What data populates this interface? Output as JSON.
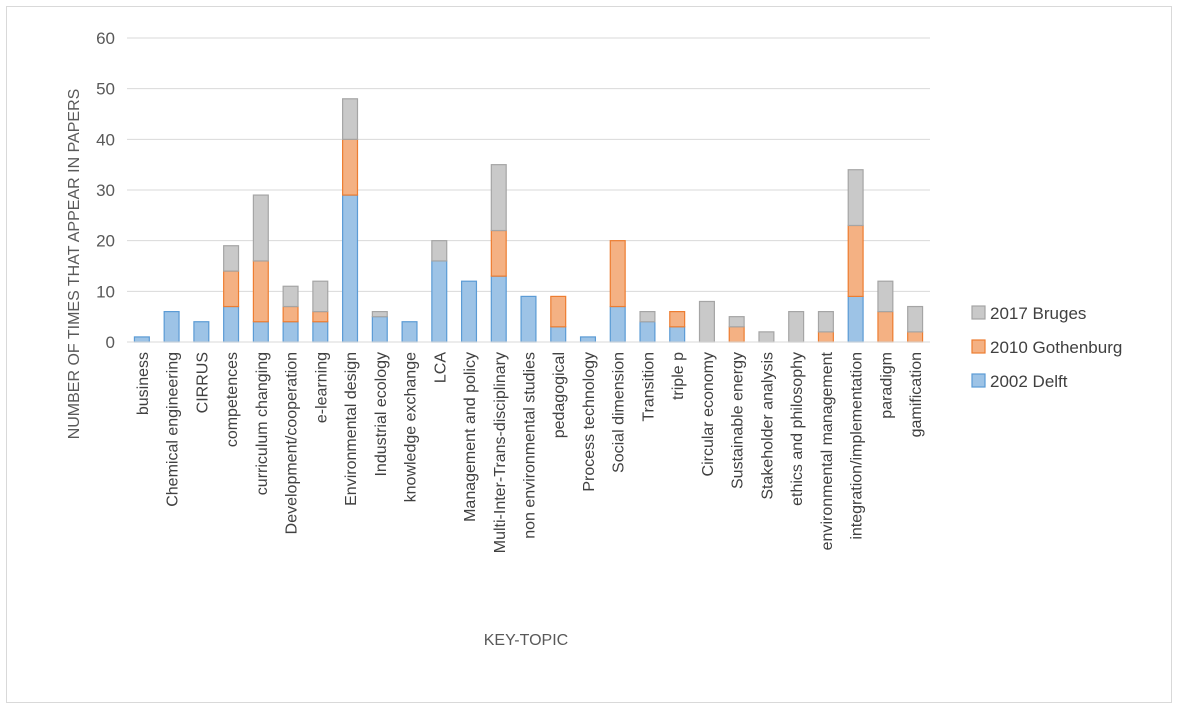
{
  "chart_data": {
    "type": "bar",
    "stacked": true,
    "title": "",
    "xlabel": "KEY-TOPIC",
    "ylabel": "NUMBER OF TIMES THAT APPEAR IN PAPERS",
    "ylim": [
      0,
      60
    ],
    "yticks": [
      0,
      10,
      20,
      30,
      40,
      50,
      60
    ],
    "grid": true,
    "legend_position": "right",
    "categories": [
      "business",
      "Chemical engineering",
      "CIRRUS",
      "competences",
      "curriculum changing",
      "Development/cooperation",
      "e-learning",
      "Environmental design",
      "Industrial ecology",
      "knowledge exchange",
      "LCA",
      "Management and policy",
      "Multi-Inter-Trans-disciplinary",
      "non environmental studies",
      "pedagogical",
      "Process technology",
      "Social dimension",
      "Transition",
      "triple p",
      "Circular economy",
      "Sustainable energy",
      "Stakeholder analysis",
      "ethics and philosophy",
      "environmental management",
      "integration/implementation",
      "paradigm",
      "gamification"
    ],
    "series": [
      {
        "name": "2002 Delft",
        "color": "#9dc3e6",
        "edge": "#5b9bd5",
        "values": [
          1,
          6,
          4,
          7,
          4,
          4,
          4,
          29,
          5,
          4,
          16,
          12,
          13,
          9,
          3,
          1,
          7,
          4,
          3,
          0,
          0,
          0,
          0,
          0,
          9,
          0,
          0
        ]
      },
      {
        "name": "2010 Gothenburg",
        "color": "#f4b183",
        "edge": "#ed7d31",
        "values": [
          0,
          0,
          0,
          7,
          12,
          3,
          2,
          11,
          0,
          0,
          0,
          0,
          9,
          0,
          6,
          0,
          13,
          0,
          3,
          0,
          3,
          0,
          0,
          2,
          14,
          6,
          2
        ]
      },
      {
        "name": "2017 Bruges",
        "color": "#c9c9c9",
        "edge": "#a5a5a5",
        "values": [
          0,
          0,
          0,
          5,
          13,
          4,
          6,
          8,
          1,
          0,
          4,
          0,
          13,
          0,
          0,
          0,
          0,
          2,
          0,
          8,
          2,
          2,
          6,
          4,
          11,
          6,
          5
        ]
      }
    ],
    "legend_order": [
      "2017 Bruges",
      "2010 Gothenburg",
      "2002 Delft"
    ]
  }
}
